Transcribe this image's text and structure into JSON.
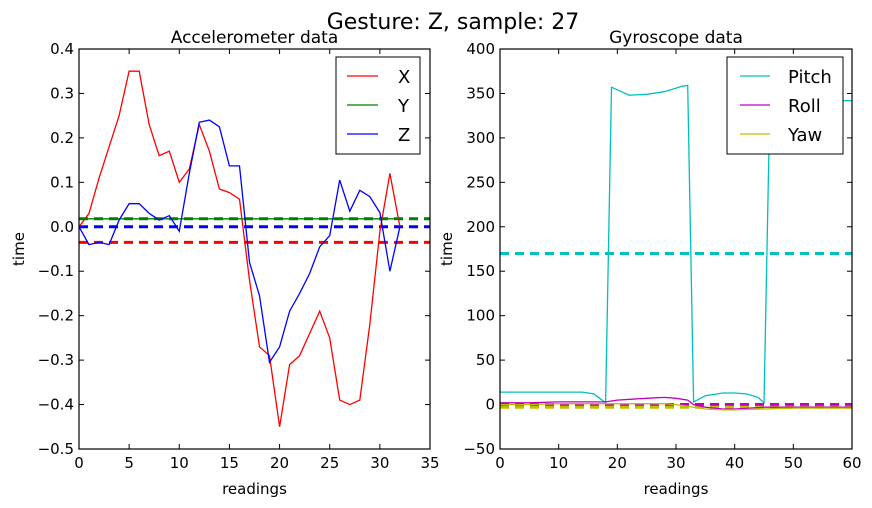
{
  "figure": {
    "suptitle": "Gesture: Z, sample: 27"
  },
  "chart_data": [
    {
      "type": "line",
      "title": "Accelerometer data",
      "xlabel": "readings",
      "ylabel": "time",
      "xlim": [
        0,
        35
      ],
      "ylim": [
        -0.5,
        0.4
      ],
      "xticks": [
        0,
        5,
        10,
        15,
        20,
        25,
        30,
        35
      ],
      "yticks": [
        -0.5,
        -0.4,
        -0.3,
        -0.2,
        -0.1,
        0.0,
        0.1,
        0.2,
        0.3,
        0.4
      ],
      "ytick_labels": [
        "−0.5",
        "−0.4",
        "−0.3",
        "−0.2",
        "−0.1",
        "0.0",
        "0.1",
        "0.2",
        "0.3",
        "0.4"
      ],
      "legend": "top-right",
      "grid": false,
      "series": [
        {
          "name": "X",
          "color": "#ff0000",
          "x": [
            0,
            1,
            2,
            3,
            4,
            5,
            6,
            7,
            8,
            9,
            10,
            11,
            12,
            13,
            14,
            15,
            16,
            17,
            18,
            19,
            20,
            21,
            22,
            23,
            24,
            25,
            26,
            27,
            28,
            29,
            30,
            31,
            32
          ],
          "y": [
            0.0,
            0.03,
            0.11,
            0.18,
            0.25,
            0.35,
            0.35,
            0.23,
            0.16,
            0.17,
            0.1,
            0.13,
            0.23,
            0.17,
            0.085,
            0.077,
            0.062,
            -0.12,
            -0.27,
            -0.29,
            -0.45,
            -0.31,
            -0.29,
            -0.24,
            -0.19,
            -0.25,
            -0.39,
            -0.4,
            -0.39,
            -0.22,
            -0.01,
            0.12,
            0.0
          ],
          "mean": -0.035
        },
        {
          "name": "Y",
          "color": "#008000",
          "x": [
            0,
            32
          ],
          "y": [
            0.018,
            0.018
          ],
          "mean": 0.018
        },
        {
          "name": "Z",
          "color": "#0000ff",
          "x": [
            0,
            1,
            2,
            3,
            4,
            5,
            6,
            7,
            8,
            9,
            10,
            11,
            12,
            13,
            14,
            15,
            16,
            17,
            18,
            19,
            20,
            21,
            22,
            23,
            24,
            25,
            26,
            27,
            28,
            29,
            30,
            31,
            32
          ],
          "y": [
            0.0,
            -0.04,
            -0.035,
            -0.04,
            0.015,
            0.052,
            0.052,
            0.03,
            0.015,
            0.025,
            -0.01,
            0.12,
            0.235,
            0.24,
            0.225,
            0.137,
            0.137,
            -0.08,
            -0.155,
            -0.305,
            -0.27,
            -0.19,
            -0.15,
            -0.105,
            -0.045,
            -0.02,
            0.105,
            0.035,
            0.082,
            0.068,
            0.032,
            -0.1,
            0.0
          ],
          "mean": 0.0
        }
      ]
    },
    {
      "type": "line",
      "title": "Gyroscope data",
      "xlabel": "readings",
      "ylabel": "time",
      "xlim": [
        0,
        60
      ],
      "ylim": [
        -50,
        400
      ],
      "xticks": [
        0,
        10,
        20,
        30,
        40,
        50,
        60
      ],
      "yticks": [
        -50,
        0,
        50,
        100,
        150,
        200,
        250,
        300,
        350,
        400
      ],
      "ytick_labels": [
        "−50",
        "0",
        "50",
        "100",
        "150",
        "200",
        "250",
        "300",
        "350",
        "400"
      ],
      "legend": "top-right",
      "grid": false,
      "series": [
        {
          "name": "Pitch",
          "color": "#00bfbf",
          "x": [
            0,
            5,
            10,
            14,
            16,
            17,
            18,
            19,
            22,
            25,
            28,
            30,
            31,
            32,
            33,
            35,
            38,
            40,
            42,
            44,
            45,
            46,
            60
          ],
          "y": [
            14,
            14,
            14,
            14,
            12,
            7,
            2,
            357,
            348,
            349,
            352,
            356,
            358,
            359,
            3,
            10,
            13,
            13,
            12,
            8,
            2,
            342,
            342
          ],
          "mean": 170
        },
        {
          "name": "Roll",
          "color": "#bf00bf",
          "x": [
            0,
            5,
            10,
            15,
            18,
            20,
            25,
            28,
            30,
            32,
            33,
            35,
            38,
            40,
            45,
            50,
            55,
            60
          ],
          "y": [
            2,
            2,
            3,
            3,
            3,
            5,
            7,
            8,
            7,
            5,
            0,
            -3,
            -5,
            -5,
            -3,
            -3,
            -3,
            -3
          ],
          "mean": 0
        },
        {
          "name": "Yaw",
          "color": "#bfbf00",
          "x": [
            0,
            5,
            10,
            15,
            20,
            25,
            28,
            30,
            32,
            35,
            38,
            40,
            45,
            50,
            55,
            60
          ],
          "y": [
            0,
            0,
            1,
            1,
            1,
            1,
            1,
            0,
            -2,
            -5,
            -6,
            -6,
            -5,
            -4,
            -4,
            -4
          ],
          "mean": -3
        }
      ]
    }
  ]
}
